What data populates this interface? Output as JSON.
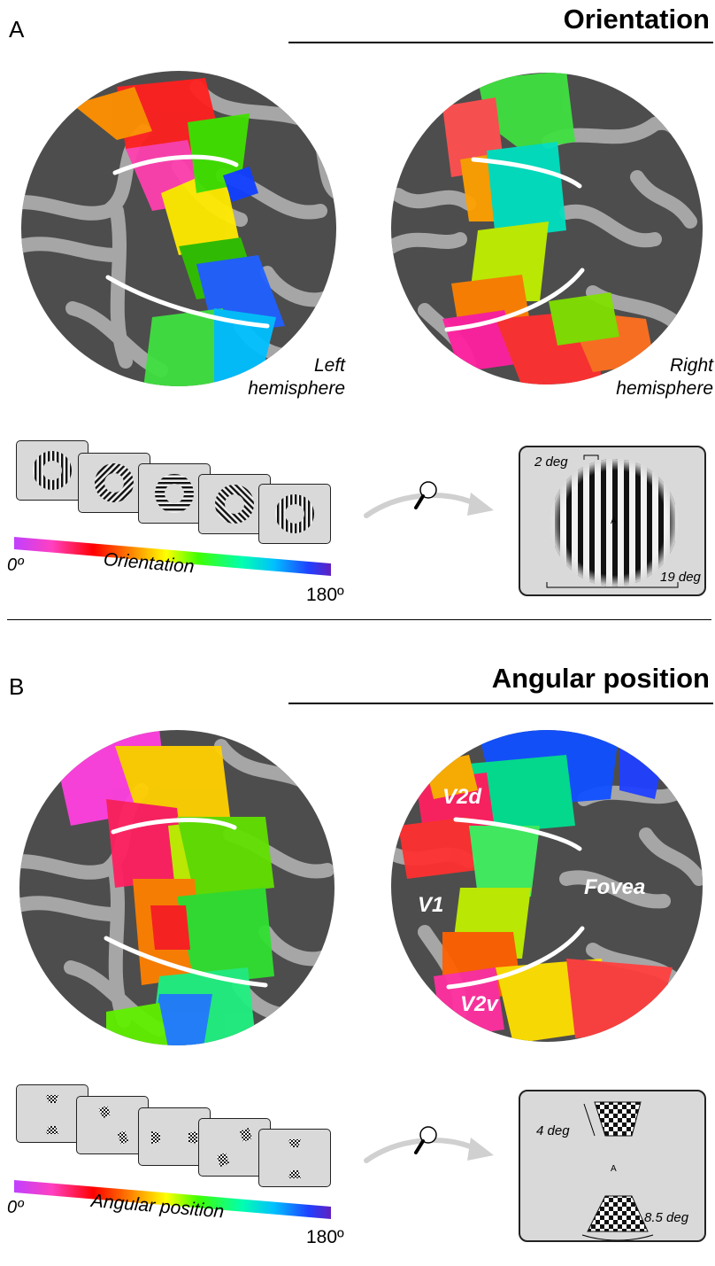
{
  "panel_a": {
    "letter": "A",
    "title": "Orientation",
    "left_label_line1": "Left",
    "left_label_line2": "hemisphere",
    "right_label_line1": "Right",
    "right_label_line2": "hemisphere",
    "colorbar_min": "0º",
    "colorbar_label": "Orientation",
    "colorbar_max": "180º",
    "stim_inner": "2 deg",
    "stim_outer": "19 deg",
    "fixation": "A"
  },
  "panel_b": {
    "letter": "B",
    "title": "Angular position",
    "labels": {
      "v2d": "V2d",
      "v1": "V1",
      "fovea": "Fovea",
      "v2v": "V2v"
    },
    "colorbar_min": "0º",
    "colorbar_label": "Angular position",
    "colorbar_max": "180º",
    "stim_width": "4 deg",
    "stim_ecc": "8.5 deg",
    "fixation": "A"
  },
  "icons": [
    "magnifier-icon",
    "curved-arrow-icon"
  ],
  "colors": {
    "cortex_dark": "#4d4d4d",
    "cortex_light": "#a6a6a6",
    "card_bg": "#d9d9d9",
    "hue_scale": [
      "#c040ff",
      "#ff40c0",
      "#ff0000",
      "#ff8000",
      "#ffff00",
      "#40ff00",
      "#00ffb0",
      "#00c0ff",
      "#2040ff",
      "#6020c0"
    ]
  }
}
